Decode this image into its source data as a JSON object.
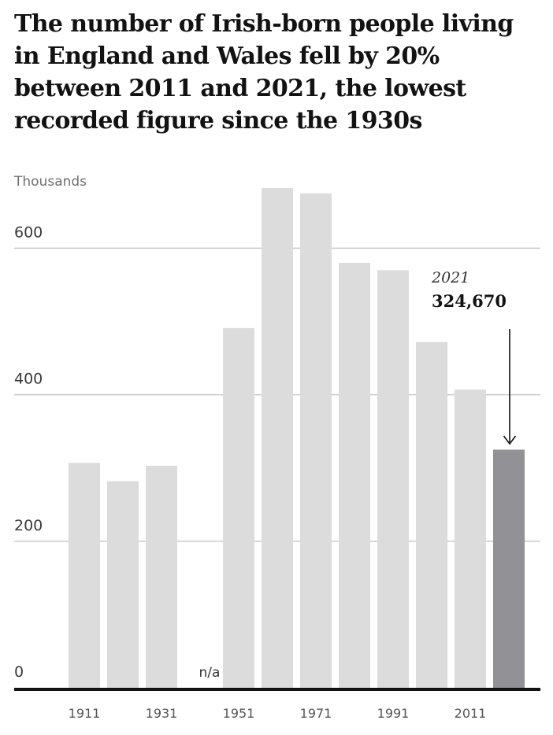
{
  "title": "The number of Irish-born people living in England and Wales fell by 20% between 2011 and 2021, the lowest recorded figure since the 1930s",
  "chart_data": {
    "type": "bar",
    "unit_label": "Thousands",
    "categories": [
      "1911",
      "1921",
      "1931",
      "1941",
      "1951",
      "1961",
      "1971",
      "1981",
      "1991",
      "2001",
      "2011",
      "2021"
    ],
    "values": [
      307,
      282,
      303,
      null,
      491,
      682,
      675,
      580,
      570,
      472,
      407,
      325
    ],
    "ylim": [
      0,
      700
    ],
    "yticks": [
      0,
      200,
      400,
      600
    ],
    "x_tick_labels": [
      "1911",
      "1931",
      "1951",
      "1971",
      "1991",
      "2011"
    ],
    "missing_label": "n/a",
    "grid": true,
    "colors": {
      "bar": "#dcdcdc",
      "highlight": "#929296",
      "grid": "#c8c8c8",
      "baseline": "#121212"
    },
    "annotation": {
      "year": "2021",
      "value": "324,670"
    }
  }
}
